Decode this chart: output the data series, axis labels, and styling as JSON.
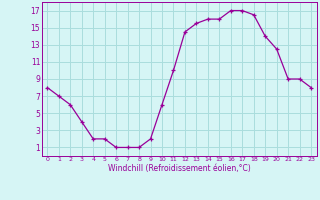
{
  "x": [
    0,
    1,
    2,
    3,
    4,
    5,
    6,
    7,
    8,
    9,
    10,
    11,
    12,
    13,
    14,
    15,
    16,
    17,
    18,
    19,
    20,
    21,
    22,
    23
  ],
  "y": [
    8,
    7,
    6,
    4,
    2,
    2,
    1,
    1,
    1,
    2,
    6,
    10,
    14.5,
    15.5,
    16,
    16,
    17,
    17,
    16.5,
    14,
    12.5,
    9,
    9,
    8
  ],
  "line_color": "#990099",
  "marker": "+",
  "bg_color": "#d6f5f5",
  "grid_color": "#aadddd",
  "xlabel": "Windchill (Refroidissement éolien,°C)",
  "xlabel_color": "#990099",
  "yticks": [
    1,
    3,
    5,
    7,
    9,
    11,
    13,
    15,
    17
  ],
  "xticks": [
    0,
    1,
    2,
    3,
    4,
    5,
    6,
    7,
    8,
    9,
    10,
    11,
    12,
    13,
    14,
    15,
    16,
    17,
    18,
    19,
    20,
    21,
    22,
    23
  ],
  "xlim": [
    -0.5,
    23.5
  ],
  "ylim": [
    0,
    18
  ],
  "tick_color": "#990099",
  "spine_color": "#990099"
}
